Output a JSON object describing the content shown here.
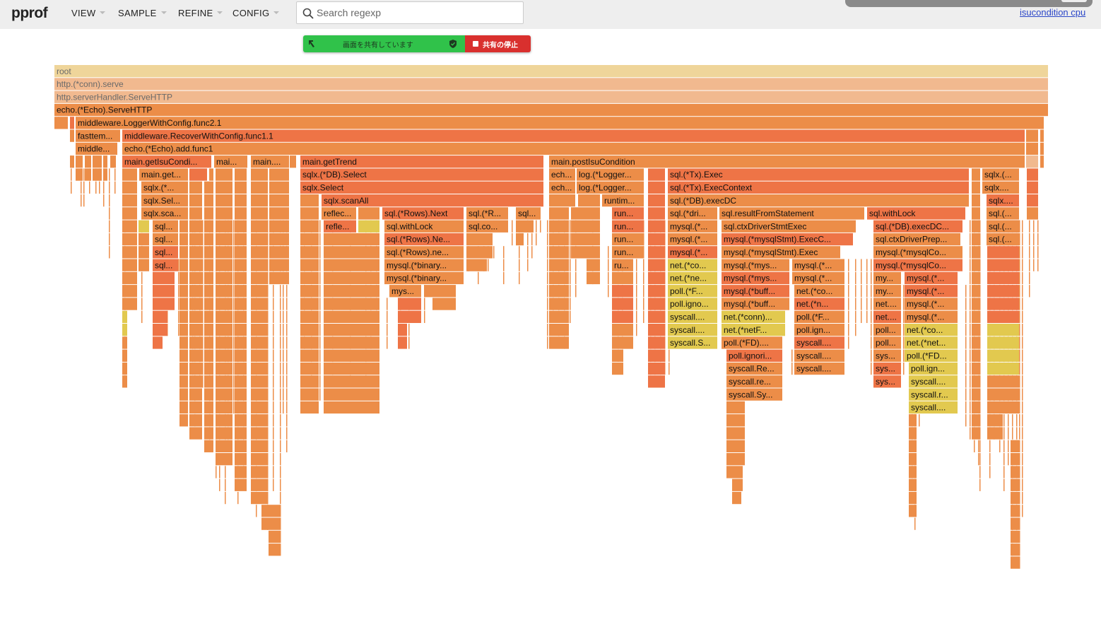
{
  "header": {
    "logo": "pprof",
    "menus": [
      {
        "label": "VIEW"
      },
      {
        "label": "SAMPLE"
      },
      {
        "label": "REFINE"
      },
      {
        "label": "CONFIG"
      }
    ],
    "search": {
      "placeholder": "Search regexp",
      "value": ""
    },
    "profile_link": "isucondition cpu"
  },
  "share_bar": {
    "status_text": "画面を共有しています",
    "stop_label": "共有の停止"
  },
  "colors": {
    "header_bg": "#eeeeee",
    "root_frame": "#efd59a",
    "light_frame": "#f1b98f",
    "mid_frame": "#ec8d48",
    "dark_frame": "#ee7446",
    "yellow_frame": "#e2c94f",
    "share_green": "#30c24a",
    "share_red": "#d9302e",
    "link_blue": "#2a46c8"
  },
  "flame_frames": [
    [
      "root",
      0
    ],
    [
      "http.(*conn).serve",
      1
    ],
    [
      "http.serverHandler.ServeHTTP",
      2
    ],
    [
      "echo.(*Echo).ServeHTTP",
      3
    ],
    [
      "middleware.LoggerWithConfig.func2.1",
      4
    ],
    [
      "fasttem...",
      5
    ],
    [
      "middleware.RecoverWithConfig.func1.1",
      5
    ],
    [
      "middle...",
      6
    ],
    [
      "echo.(*Echo).add.func1",
      6
    ],
    [
      "main.getIsuCondi...",
      7
    ],
    [
      "mai...",
      7
    ],
    [
      "main....",
      7
    ],
    [
      "main.getTrend",
      7
    ],
    [
      "main.postIsuCondition",
      7
    ],
    [
      "main.get...",
      8
    ],
    [
      "sqlx.(*DB).Select",
      8
    ],
    [
      "ech...",
      8
    ],
    [
      "log.(*Logger...",
      8
    ],
    [
      "sql.(*Tx).Exec",
      8
    ],
    [
      "sqlx.(...",
      8
    ],
    [
      "sqlx.(*...",
      9
    ],
    [
      "sqlx.Select",
      9
    ],
    [
      "ech...",
      9
    ],
    [
      "log.(*Logger...",
      9
    ],
    [
      "sql.(*Tx).ExecContext",
      9
    ],
    [
      "sqlx....",
      9
    ],
    [
      "sqlx.Sel...",
      10
    ],
    [
      "sqlx.scanAll",
      10
    ],
    [
      "runtim...",
      10
    ],
    [
      "sql.(*DB).execDC",
      10
    ],
    [
      "sqlx....",
      10
    ],
    [
      "sqlx.sca...",
      11
    ],
    [
      "reflec...",
      11
    ],
    [
      "sql.(*Rows).Next",
      11
    ],
    [
      "sql.(*R...",
      11
    ],
    [
      "sql...",
      11
    ],
    [
      "run...",
      11
    ],
    [
      "sql.(*dri...",
      11
    ],
    [
      "sql.resultFromStatement",
      11
    ],
    [
      "sql.withLock",
      11
    ],
    [
      "sql.(...",
      11
    ],
    [
      "sql...",
      12
    ],
    [
      "refle...",
      12
    ],
    [
      "sql.withLock",
      12
    ],
    [
      "sql.co...",
      12
    ],
    [
      "run...",
      12
    ],
    [
      "mysql.(*...",
      12
    ],
    [
      "sql.ctxDriverStmtExec",
      12
    ],
    [
      "sql.(*DB).execDC...",
      12
    ],
    [
      "sql.(...",
      12
    ],
    [
      "sql...",
      13
    ],
    [
      "sql.(*Rows).Ne...",
      13
    ],
    [
      "run...",
      13
    ],
    [
      "mysql.(*...",
      13
    ],
    [
      "mysql.(*mysqlStmt).ExecC...",
      13
    ],
    [
      "sql.ctxDriverPrep...",
      13
    ],
    [
      "sql.(...",
      13
    ],
    [
      "sql...",
      14
    ],
    [
      "sql.(*Rows).ne...",
      14
    ],
    [
      "run...",
      14
    ],
    [
      "mysql.(*...",
      14
    ],
    [
      "mysql.(*mysqlStmt).Exec",
      14
    ],
    [
      "mysql.(*mysqlCo...",
      14
    ],
    [
      "sql...",
      15
    ],
    [
      "mysql.(*binary...",
      15
    ],
    [
      "ru...",
      15
    ],
    [
      "net.(*co...",
      15
    ],
    [
      "mysql.(*mys...",
      15
    ],
    [
      "mysql.(*...",
      15
    ],
    [
      "mysql.(*mysqlCo...",
      15
    ],
    [
      "mysql.(*binary...",
      16
    ],
    [
      "net.(*ne...",
      16
    ],
    [
      "mysql.(*mys...",
      16
    ],
    [
      "mysql.(*...",
      16
    ],
    [
      "my...",
      16
    ],
    [
      "mysql.(*...",
      16
    ],
    [
      "mys...",
      17
    ],
    [
      "poll.(*F...",
      17
    ],
    [
      "mysql.(*buff...",
      17
    ],
    [
      "net.(*co...",
      17
    ],
    [
      "my...",
      17
    ],
    [
      "mysql.(*...",
      17
    ],
    [
      "poll.igno...",
      18
    ],
    [
      "mysql.(*buff...",
      18
    ],
    [
      "net.(*n...",
      18
    ],
    [
      "net....",
      18
    ],
    [
      "mysql.(*...",
      18
    ],
    [
      "syscall....",
      19
    ],
    [
      "net.(*conn)...",
      19
    ],
    [
      "poll.(*F...",
      19
    ],
    [
      "net....",
      19
    ],
    [
      "mysql.(*...",
      19
    ],
    [
      "syscall....",
      20
    ],
    [
      "net.(*netF...",
      20
    ],
    [
      "poll.ign...",
      20
    ],
    [
      "poll...",
      20
    ],
    [
      "net.(*co...",
      20
    ],
    [
      "syscall.S...",
      21
    ],
    [
      "poll.(*FD)....",
      21
    ],
    [
      "syscall....",
      21
    ],
    [
      "poll...",
      21
    ],
    [
      "net.(*net...",
      21
    ],
    [
      "poll.ignori...",
      22
    ],
    [
      "syscall....",
      22
    ],
    [
      "sys...",
      22
    ],
    [
      "poll.(*FD...",
      22
    ],
    [
      "syscall.Re...",
      23
    ],
    [
      "syscall....",
      23
    ],
    [
      "sys...",
      23
    ],
    [
      "poll.ign...",
      23
    ],
    [
      "syscall.re...",
      24
    ],
    [
      "sys...",
      24
    ],
    [
      "syscall....",
      24
    ],
    [
      "syscall.Sy...",
      25
    ],
    [
      "syscall.r...",
      25
    ],
    [
      "syscall....",
      26
    ]
  ]
}
